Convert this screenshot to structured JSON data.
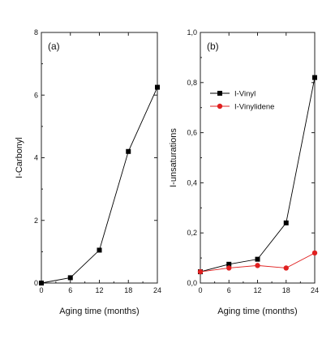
{
  "chart_data": [
    {
      "type": "line",
      "panel_label": "(a)",
      "xlabel": "Aging time (months)",
      "ylabel": "I-Carbonyl",
      "x": [
        0,
        6,
        12,
        18,
        24
      ],
      "xlim": [
        0,
        24
      ],
      "ylim": [
        0,
        8
      ],
      "xticks": [
        0,
        6,
        12,
        18,
        24
      ],
      "yticks": [
        0,
        2,
        4,
        6,
        8
      ],
      "ytick_labels": [
        "0",
        "2",
        "4",
        "6",
        "8"
      ],
      "grid": false,
      "series": [
        {
          "values": [
            0.0,
            0.17,
            1.05,
            4.2,
            6.25
          ],
          "color": "#000000",
          "marker": "square"
        }
      ]
    },
    {
      "type": "line",
      "panel_label": "(b)",
      "xlabel": "Aging time (months)",
      "ylabel": "I-unsaturations",
      "x": [
        0,
        6,
        12,
        18,
        24
      ],
      "xlim": [
        0,
        24
      ],
      "ylim": [
        0,
        1.0
      ],
      "xticks": [
        0,
        6,
        12,
        18,
        24
      ],
      "yticks": [
        0,
        0.2,
        0.4,
        0.6,
        0.8,
        1.0
      ],
      "ytick_labels": [
        "0,0",
        "0,2",
        "0,4",
        "0,6",
        "0,8",
        "1,0"
      ],
      "grid": false,
      "legend_position": "upper-left",
      "series": [
        {
          "name": "I-Vinyl",
          "values": [
            0.045,
            0.075,
            0.095,
            0.24,
            0.82
          ],
          "color": "#000000",
          "marker": "square"
        },
        {
          "name": "I-Vinylidene",
          "values": [
            0.045,
            0.06,
            0.07,
            0.06,
            0.12
          ],
          "color": "#e02020",
          "marker": "circle"
        }
      ]
    }
  ]
}
